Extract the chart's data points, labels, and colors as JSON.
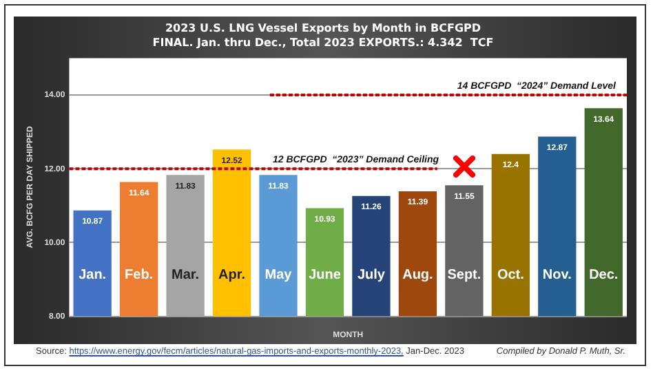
{
  "chart_data": {
    "type": "bar",
    "title": "2023 U.S. LNG Vessel Exports by Month in BCFGPD",
    "subtitle": "FINAL. Jan. thru Dec., Total 2023 EXPORTS.: 4.342  TCF",
    "xlabel": "MONTH",
    "ylabel": "AVG. BCFG PER DAY SHIPPED",
    "categories": [
      "Jan.",
      "Feb.",
      "Mar.",
      "Apr.",
      "May",
      "June",
      "July",
      "Aug.",
      "Sept.",
      "Oct.",
      "Nov.",
      "Dec."
    ],
    "values": [
      10.87,
      11.64,
      11.83,
      12.52,
      11.83,
      10.93,
      11.26,
      11.39,
      11.55,
      12.4,
      12.87,
      13.64
    ],
    "colors": [
      "#4472c4",
      "#ed7d31",
      "#a5a5a5",
      "#ffc000",
      "#5b9bd5",
      "#70ad47",
      "#264478",
      "#9e480e",
      "#636363",
      "#997300",
      "#255e91",
      "#43682b"
    ],
    "ylim": [
      8,
      15
    ],
    "yticks": [
      {
        "value": 8,
        "label": "8.00"
      },
      {
        "value": 10,
        "label": "10.00"
      },
      {
        "value": 12,
        "label": "12.00"
      },
      {
        "value": 14,
        "label": "14.00"
      }
    ],
    "grid": "y",
    "legend": false,
    "data_labels": true,
    "ref_lines": [
      {
        "axis": "y",
        "value": 12,
        "label": "12 BCFGPD  “2023” Demand Ceiling",
        "color": "#c00000",
        "line_style": "dotted"
      },
      {
        "axis": "y",
        "value": 14,
        "label": "14 BCFGPD  “2024” Demand Level",
        "color": "#c00000",
        "line_style": "dotted"
      }
    ],
    "annotations": [
      "Source: https://www.energy.gov/fecm/articles/natural-gas-imports-and-exports-monthly-2023, Jan-Dec. 2023",
      "Compiled by Donald P. Muth, Sr."
    ]
  }
}
